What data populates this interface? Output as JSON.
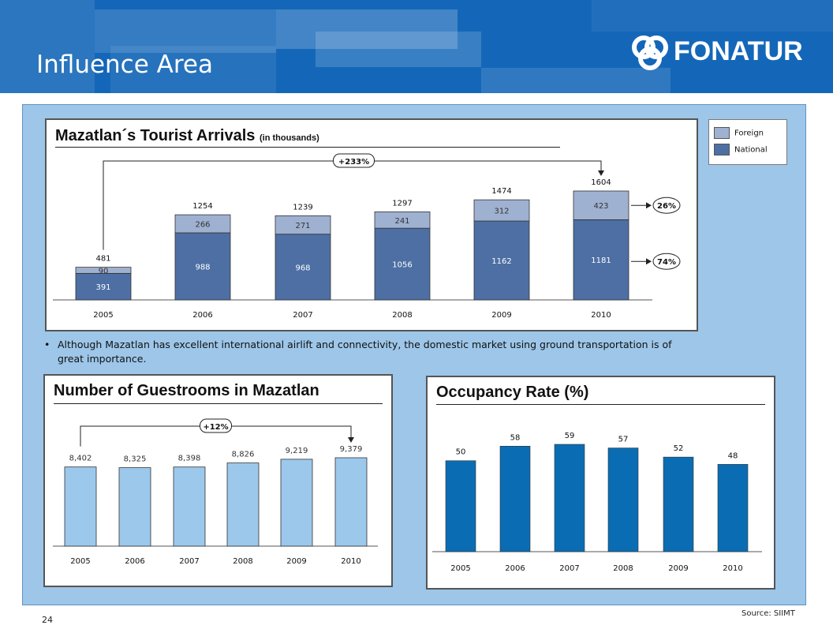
{
  "header": {
    "title": "Influence Area",
    "brand": "FONATUR"
  },
  "colors": {
    "header_blue": "#1467b8",
    "area_bg": "#9dc6e9",
    "national": "#4d6fa3",
    "foreign": "#9fb1d1",
    "guestrooms": "#9cc8ec",
    "occupancy": "#0a6db3"
  },
  "legend": {
    "foreign": "Foreign",
    "national": "National"
  },
  "bullet": {
    "symbol": "•",
    "text": "Although Mazatlan has excellent international airlift and connectivity, the domestic market using ground transportation is of great importance."
  },
  "footer": {
    "page_number": "24",
    "source": "Source: SIIMT"
  },
  "chart_data": [
    {
      "type": "bar",
      "stacked": true,
      "title": "Mazatlan´s Tourist Arrivals",
      "subtitle": "(in thousands)",
      "categories": [
        "2005",
        "2006",
        "2007",
        "2008",
        "2009",
        "2010"
      ],
      "series": [
        {
          "name": "National",
          "values": [
            391,
            988,
            968,
            1056,
            1162,
            1181
          ]
        },
        {
          "name": "Foreign",
          "values": [
            90,
            266,
            271,
            241,
            312,
            423
          ]
        }
      ],
      "totals": [
        481,
        1254,
        1239,
        1297,
        1474,
        1604
      ],
      "growth_label": "+233%",
      "share_labels": {
        "foreign": "26%",
        "national": "74%"
      },
      "ylim": [
        0,
        1604
      ],
      "legend": "top-right",
      "grid": false
    },
    {
      "type": "bar",
      "title": "Number of Guestrooms in Mazatlan",
      "categories": [
        "2005",
        "2006",
        "2007",
        "2008",
        "2009",
        "2010"
      ],
      "values": [
        8402,
        8325,
        8398,
        8826,
        9219,
        9379
      ],
      "value_labels": [
        "8,402",
        "8,325",
        "8,398",
        "8,826",
        "9,219",
        "9,379"
      ],
      "growth_label": "+12%",
      "ylim": [
        0,
        9379
      ],
      "grid": false
    },
    {
      "type": "bar",
      "title": "Occupancy Rate (%)",
      "categories": [
        "2005",
        "2006",
        "2007",
        "2008",
        "2009",
        "2010"
      ],
      "values": [
        50,
        58,
        59,
        57,
        52,
        48
      ],
      "ylim": [
        0,
        59
      ],
      "grid": false
    }
  ]
}
